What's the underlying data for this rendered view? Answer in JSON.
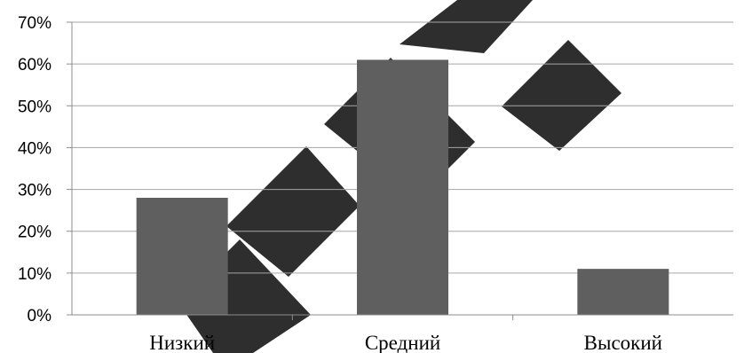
{
  "chart_data": {
    "type": "bar",
    "categories": [
      "Низкий",
      "Средний",
      "Высокий"
    ],
    "values": [
      28,
      61,
      11
    ],
    "ylim": [
      0,
      70
    ],
    "yticks": [
      "0%",
      "10%",
      "20%",
      "30%",
      "40%",
      "50%",
      "60%",
      "70%"
    ],
    "title": "",
    "xlabel": "",
    "ylabel": "",
    "grid": true,
    "legend": "none",
    "bar_color": "#5f5f5f"
  }
}
